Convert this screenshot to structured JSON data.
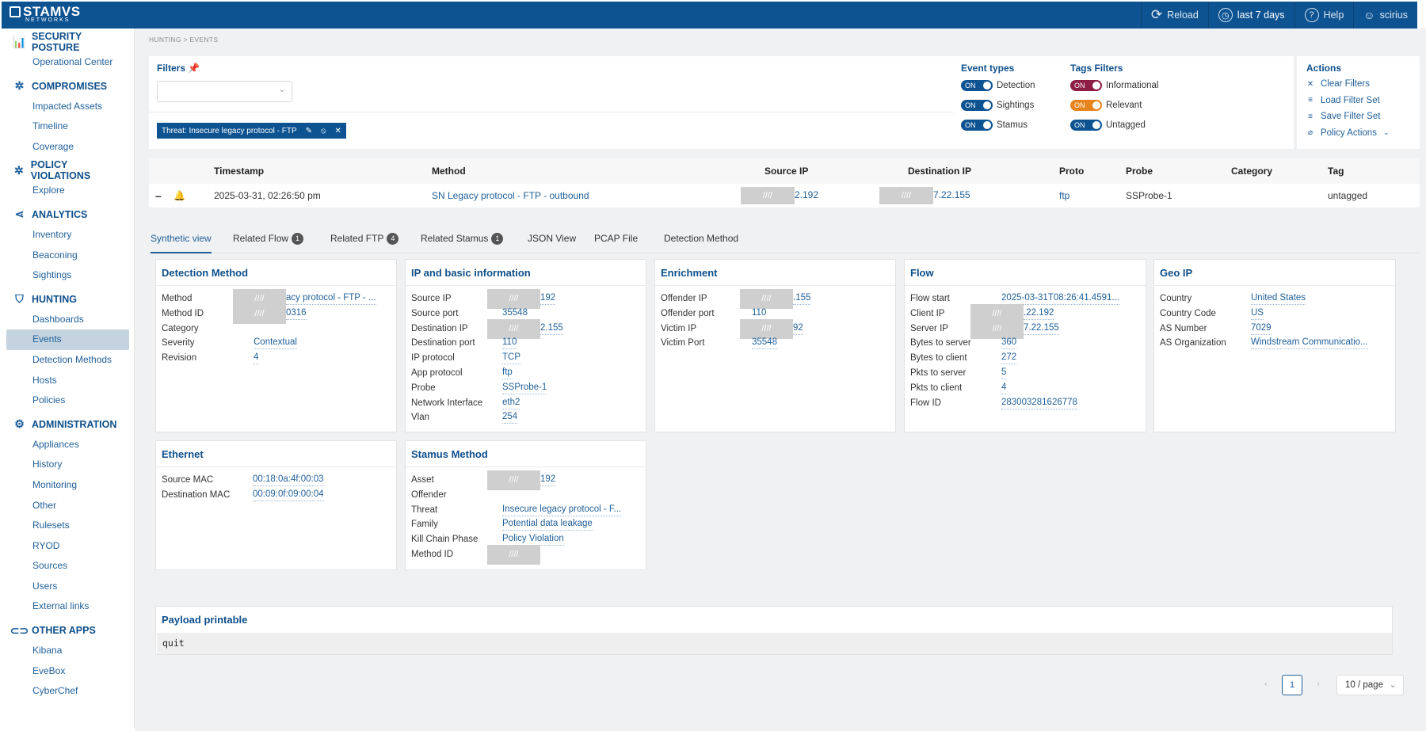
{
  "brand": {
    "name": "STAMVS",
    "sub": "NETWORKS"
  },
  "topbar": {
    "reload": "Reload",
    "range": "last 7 days",
    "help": "Help",
    "user": "scirius"
  },
  "sidebar": [
    {
      "title": "SECURITY POSTURE",
      "icon": "chart-icon",
      "items": [
        "Operational Center"
      ]
    },
    {
      "title": "COMPROMISES",
      "icon": "bug-icon",
      "items": [
        "Impacted Assets",
        "Timeline",
        "Coverage"
      ]
    },
    {
      "title": "POLICY VIOLATIONS",
      "icon": "bug-icon",
      "items": [
        "Explore"
      ]
    },
    {
      "title": "ANALYTICS",
      "icon": "share-icon",
      "items": [
        "Inventory",
        "Beaconing",
        "Sightings"
      ]
    },
    {
      "title": "HUNTING",
      "icon": "shield-icon",
      "items": [
        "Dashboards",
        "Events",
        "Detection Methods",
        "Hosts",
        "Policies"
      ]
    },
    {
      "title": "ADMINISTRATION",
      "icon": "gear-icon",
      "items": [
        "Appliances",
        "History",
        "Monitoring",
        "Other",
        "Rulesets",
        "RYOD",
        "Sources",
        "Users",
        "External links"
      ]
    },
    {
      "title": "OTHER APPS",
      "icon": "link-icon",
      "items": [
        "Kibana",
        "EveBox",
        "CyberChef"
      ]
    }
  ],
  "active_item": "Events",
  "breadcrumb": "HUNTING  >  EVENTS",
  "filters": {
    "title": "Filters",
    "chip": "Threat: Insecure legacy protocol - FTP"
  },
  "event_types": {
    "title": "Event types",
    "items": [
      {
        "state": "ON",
        "label": "Detection"
      },
      {
        "state": "ON",
        "label": "Sightings"
      },
      {
        "state": "ON",
        "label": "Stamus"
      }
    ]
  },
  "tags_filters": {
    "title": "Tags Filters",
    "items": [
      {
        "state": "ON",
        "label": "Informational",
        "color": "#8e1d45"
      },
      {
        "state": "ON",
        "label": "Relevant",
        "color": "#e8841e"
      },
      {
        "state": "ON",
        "label": "Untagged",
        "color": "#0e5391"
      }
    ]
  },
  "actions": {
    "title": "Actions",
    "items": [
      "Clear Filters",
      "Load Filter Set",
      "Save Filter Set",
      "Policy Actions"
    ]
  },
  "table": {
    "headers": [
      "Timestamp",
      "Method",
      "Source IP",
      "Destination IP",
      "Proto",
      "Probe",
      "Category",
      "Tag"
    ],
    "row": {
      "timestamp": "2025-03-31, 02:26:50 pm",
      "method": "SN Legacy protocol - FTP - outbound",
      "src": "2.192",
      "dst": "7.22.155",
      "proto": "ftp",
      "probe": "SSProbe-1",
      "category": "",
      "tag": "untagged"
    }
  },
  "mask": "////",
  "tabs": [
    {
      "label": "Synthetic view",
      "badge": ""
    },
    {
      "label": "Related Flow",
      "badge": "1"
    },
    {
      "label": "Related FTP",
      "badge": "4"
    },
    {
      "label": "Related Stamus",
      "badge": "1"
    },
    {
      "label": "JSON View",
      "badge": ""
    },
    {
      "label": "PCAP File",
      "badge": ""
    },
    {
      "label": "Detection Method",
      "badge": ""
    }
  ],
  "cards": {
    "detection": {
      "title": "Detection Method",
      "rows": [
        [
          "Method",
          "acy protocol - FTP - ..."
        ],
        [
          "Method ID",
          "0316"
        ],
        [
          "Category",
          ""
        ],
        [
          "Severity",
          "Contextual"
        ],
        [
          "Revision",
          "4"
        ]
      ]
    },
    "ip": {
      "title": "IP and basic information",
      "rows": [
        [
          "Source IP",
          "192"
        ],
        [
          "Source port",
          "35548"
        ],
        [
          "Destination IP",
          "2.155"
        ],
        [
          "Destination port",
          "110"
        ],
        [
          "IP protocol",
          "TCP"
        ],
        [
          "App protocol",
          "ftp"
        ],
        [
          "Probe",
          "SSProbe-1"
        ],
        [
          "Network Interface",
          "eth2"
        ],
        [
          "Vlan",
          "254"
        ]
      ]
    },
    "enrichment": {
      "title": "Enrichment",
      "rows": [
        [
          "Offender IP",
          ".155"
        ],
        [
          "Offender port",
          "110"
        ],
        [
          "Victim IP",
          "92"
        ],
        [
          "Victim Port",
          "35548"
        ]
      ]
    },
    "flow": {
      "title": "Flow",
      "rows": [
        [
          "Flow start",
          "2025-03-31T08:26:41.4591..."
        ],
        [
          "Client IP",
          ".22.192"
        ],
        [
          "Server IP",
          "7.22.155"
        ],
        [
          "Bytes to server",
          "360"
        ],
        [
          "Bytes to client",
          "272"
        ],
        [
          "Pkts to server",
          "5"
        ],
        [
          "Pkts to client",
          "4"
        ],
        [
          "Flow ID",
          "283003281626778"
        ]
      ]
    },
    "geo": {
      "title": "Geo IP",
      "rows": [
        [
          "Country",
          "United States"
        ],
        [
          "Country Code",
          "US"
        ],
        [
          "AS Number",
          "7029"
        ],
        [
          "AS Organization",
          "Windstream Communicatio..."
        ]
      ]
    },
    "ethernet": {
      "title": "Ethernet",
      "rows": [
        [
          "Source MAC",
          "00:18:0a:4f:00:03"
        ],
        [
          "Destination MAC",
          "00:09:0f:09:00:04"
        ]
      ]
    },
    "stamus": {
      "title": "Stamus Method",
      "rows": [
        [
          "Asset",
          "192"
        ],
        [
          "Offender",
          ""
        ],
        [
          "Threat",
          "Insecure legacy protocol - F..."
        ],
        [
          "Family",
          "Potential data leakage"
        ],
        [
          "Kill Chain Phase",
          "Policy Violation"
        ],
        [
          "Method ID",
          ""
        ]
      ]
    }
  },
  "payload": {
    "title": "Payload printable",
    "content": "quit"
  },
  "pagination": {
    "page": "1",
    "page_size": "10 / page"
  }
}
